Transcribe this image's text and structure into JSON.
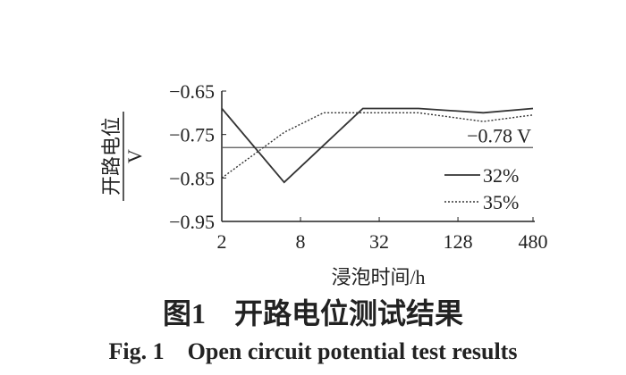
{
  "chart_data": {
    "type": "line",
    "y_label": "开路电位",
    "y_unit": "V",
    "x_label": "浸泡时间/h",
    "caption_cn": "图1　开路电位测试结果",
    "caption_en": "Fig. 1　Open circuit potential test results",
    "x_scale": "log",
    "x": [
      2,
      6,
      12,
      24,
      64,
      200,
      480
    ],
    "series": [
      {
        "name": "32%",
        "color": "#333333",
        "dash": "solid",
        "values": [
          -0.69,
          -0.86,
          -0.775,
          -0.69,
          -0.69,
          -0.7,
          -0.69
        ]
      },
      {
        "name": "35%",
        "color": "#333333",
        "dash": "dotted",
        "values": [
          -0.85,
          -0.745,
          -0.7,
          -0.7,
          -0.7,
          -0.72,
          -0.705
        ]
      }
    ],
    "reference_line": {
      "value": -0.78,
      "label": "−0.78 V"
    },
    "xlim": [
      2,
      480
    ],
    "xticks": [
      2,
      8,
      32,
      128,
      480
    ],
    "ylim": [
      -0.95,
      -0.65
    ],
    "yticks": [
      {
        "value": -0.65,
        "label": "−0.65"
      },
      {
        "value": -0.75,
        "label": "−0.75"
      },
      {
        "value": -0.85,
        "label": "−0.85"
      },
      {
        "value": -0.95,
        "label": "−0.95"
      }
    ],
    "legend": "right"
  }
}
